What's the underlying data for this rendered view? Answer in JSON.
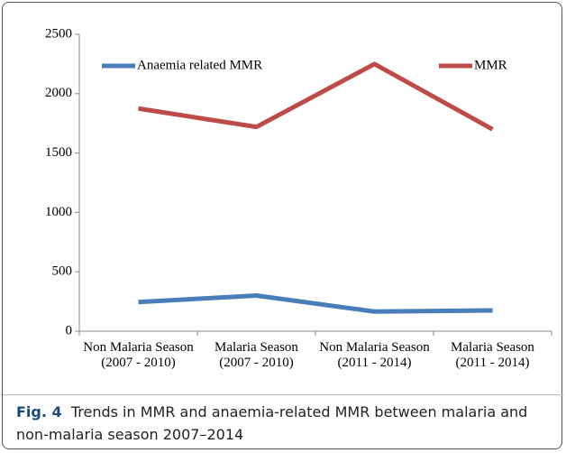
{
  "chart_data": {
    "type": "line",
    "categories": [
      "Non Malaria Season (2007 - 2010)",
      "Malaria Season (2007 - 2010)",
      "Non Malaria Season (2011 - 2014)",
      "Malaria Season (2011 - 2014)"
    ],
    "series": [
      {
        "name": "Anaemia related MMR",
        "color": "#4a7ebb",
        "values": [
          245,
          300,
          165,
          175
        ]
      },
      {
        "name": "MMR",
        "color": "#be4b48",
        "values": [
          1875,
          1720,
          2250,
          1700
        ]
      }
    ],
    "ylim": [
      0,
      2500
    ],
    "yticks": [
      0,
      500,
      1000,
      1500,
      2000,
      2500
    ],
    "grid": false,
    "legend": "top",
    "caption_label": "Fig. 4",
    "caption": "Trends in MMR and anaemia-related MMR between malaria and non-malaria season 2007–2014"
  }
}
